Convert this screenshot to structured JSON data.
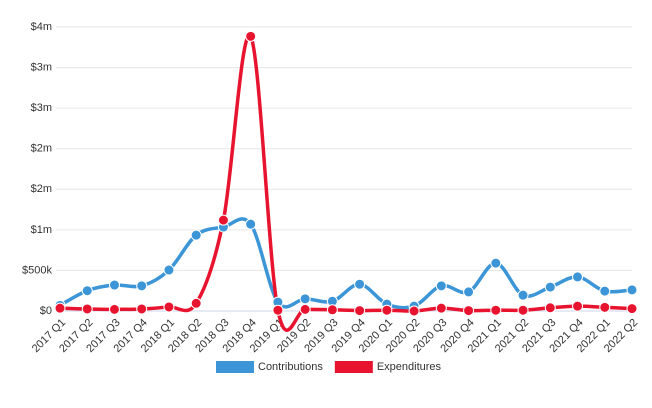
{
  "chart_data": {
    "type": "line",
    "categories": [
      "2017 Q1",
      "2017 Q2",
      "2017 Q3",
      "2017 Q4",
      "2018 Q1",
      "2018 Q2",
      "2018 Q3",
      "2018 Q4",
      "2019 Q1",
      "2019 Q2",
      "2019 Q3",
      "2019 Q4",
      "2020 Q1",
      "2020 Q2",
      "2020 Q3",
      "2020 Q4",
      "2021 Q1",
      "2021 Q2",
      "2021 Q3",
      "2021 Q4",
      "2022 Q1",
      "2022 Q2"
    ],
    "series": [
      {
        "name": "Contributions",
        "color": "#3b95d6",
        "values": [
          70000,
          250000,
          320000,
          310000,
          505000,
          935000,
          1035000,
          1070000,
          110000,
          150000,
          120000,
          330000,
          85000,
          60000,
          310000,
          235000,
          590000,
          195000,
          295000,
          420000,
          245000,
          260000
        ]
      },
      {
        "name": "Expenditures",
        "color": "#e8132f",
        "values": [
          35000,
          25000,
          20000,
          25000,
          50000,
          95000,
          1120000,
          3385000,
          10000,
          20000,
          15000,
          5000,
          10000,
          0,
          35000,
          5000,
          10000,
          10000,
          40000,
          60000,
          45000,
          30000
        ]
      }
    ],
    "ylim": [
      0,
      3500000
    ],
    "yticks": [
      {
        "value": 0,
        "label": "$0"
      },
      {
        "value": 500000,
        "label": "$500k"
      },
      {
        "value": 1000000,
        "label": "$1m"
      },
      {
        "value": 1500000,
        "label": "$2m"
      },
      {
        "value": 2000000,
        "label": "$2m"
      },
      {
        "value": 2500000,
        "label": "$3m"
      },
      {
        "value": 3000000,
        "label": "$3m"
      },
      {
        "value": 3500000,
        "label": "$4m"
      }
    ],
    "grid": true,
    "legend": "bottom"
  }
}
